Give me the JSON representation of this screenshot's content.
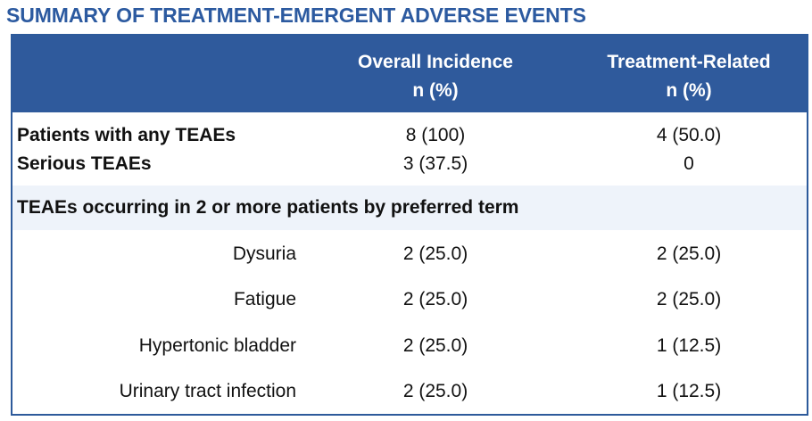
{
  "title": "SUMMARY OF TREATMENT-EMERGENT ADVERSE EVENTS",
  "header": {
    "overall": {
      "line1": "Overall Incidence",
      "line2": "n (%)"
    },
    "related": {
      "line1": "Treatment-Related",
      "line2": "n (%)"
    }
  },
  "summary_rows": [
    {
      "label": "Patients with any TEAEs",
      "overall": "8 (100)",
      "related": "4 (50.0)"
    },
    {
      "label": "Serious TEAEs",
      "overall": "3 (37.5)",
      "related": "0"
    }
  ],
  "section": {
    "label": "TEAEs occurring in 2 or more patients by preferred term"
  },
  "term_rows": [
    {
      "label": "Dysuria",
      "overall": "2 (25.0)",
      "related": "2 (25.0)"
    },
    {
      "label": "Fatigue",
      "overall": "2 (25.0)",
      "related": "2 (25.0)"
    },
    {
      "label": "Hypertonic bladder",
      "overall": "2 (25.0)",
      "related": "1 (12.5)"
    },
    {
      "label": "Urinary tract infection",
      "overall": "2 (25.0)",
      "related": "1 (12.5)"
    }
  ],
  "colors": {
    "title": "#2c5aa0",
    "header_band": "#2f5a9c",
    "border": "#2d5a9b",
    "section_band": "#eef3fa"
  }
}
